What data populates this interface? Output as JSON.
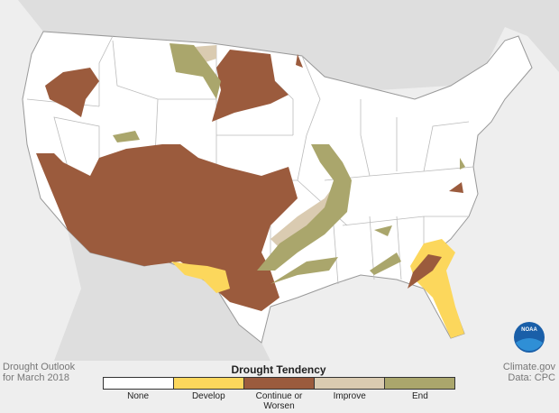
{
  "caption": {
    "lines": [
      "Drought Outlook",
      "for March 2018"
    ]
  },
  "credit": {
    "lines": [
      "Climate.gov",
      "Data: CPC"
    ]
  },
  "logo": "NOAA",
  "legend": {
    "title": "Drought Tendency",
    "items": [
      {
        "label": "None",
        "color": "#ffffff"
      },
      {
        "label": "Develop",
        "color": "#fcd75c"
      },
      {
        "label": "Continue or Worsen",
        "color": "#9b5b3d"
      },
      {
        "label": "Improve",
        "color": "#dacbb1"
      },
      {
        "label": "End",
        "color": "#aaa66c"
      }
    ]
  }
}
